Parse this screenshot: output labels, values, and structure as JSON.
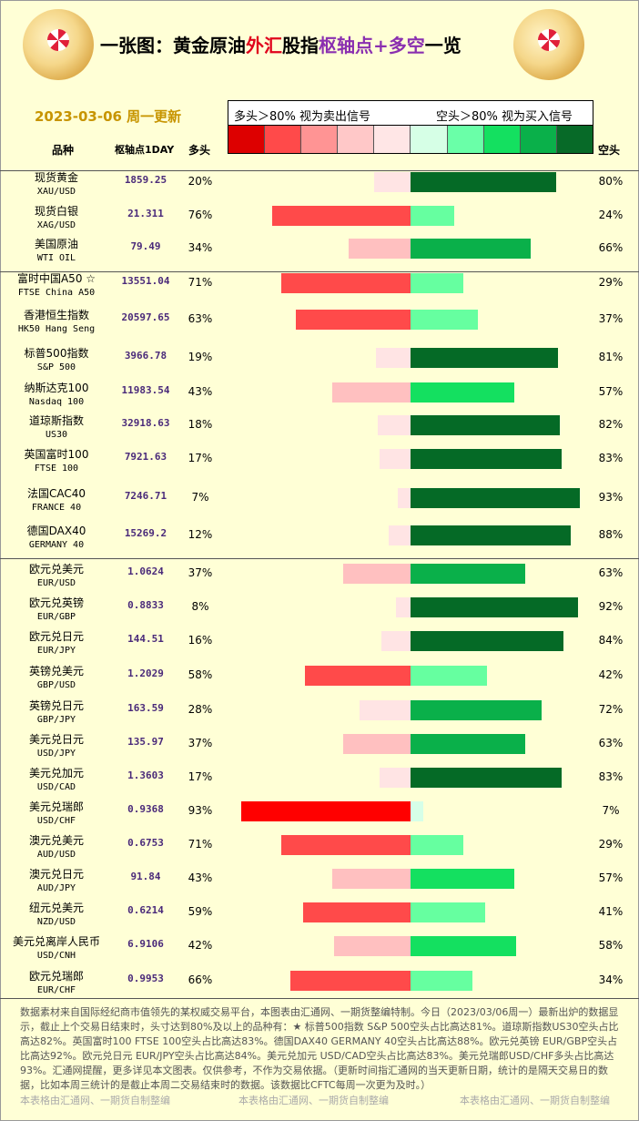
{
  "title": {
    "part1": "一张图：黄金原油",
    "part2": "外汇",
    "part3": "股指",
    "part4": "枢轴点+多空",
    "part5": "一览"
  },
  "date_label": "2023-03-06 周一更新",
  "legend": {
    "left": "多头＞80% 视为卖出信号",
    "right": "空头＞80% 视为买入信号"
  },
  "swatch_colors": [
    "#dd0000",
    "#ff4a4a",
    "#ff9494",
    "#ffc8c8",
    "#ffe6e6",
    "#d6ffe6",
    "#6affa8",
    "#14e060",
    "#0ab04a",
    "#076a28"
  ],
  "headers": {
    "name": "品种",
    "pivot": "枢轴点1DAY",
    "long": "多头",
    "short": "空头"
  },
  "colors": {
    "long_strong": "#ff0000",
    "long_mid": "#ff4a4a",
    "long_light": "#ffc0c0",
    "long_pale": "#ffe4e4",
    "short_pale": "#d6ffe8",
    "short_light": "#66ffa0",
    "short_mid": "#14e060",
    "short_strong": "#0ab04a",
    "short_dark": "#056a26"
  },
  "chart_data": {
    "type": "bar",
    "title": "一张图：黄金原油外汇股指枢轴点+多空一览",
    "categories": [
      "现货黄金",
      "现货白银",
      "美国原油",
      "富时中国A50 ☆",
      "香港恒生指数",
      "标普500指数",
      "纳斯达克100",
      "道琼斯指数",
      "英国富时100",
      "法国CAC40",
      "德国DAX40",
      "欧元兑美元",
      "欧元兑英镑",
      "欧元兑日元",
      "英镑兑美元",
      "英镑兑日元",
      "美元兑日元",
      "美元兑加元",
      "美元兑瑞郎",
      "澳元兑美元",
      "澳元兑日元",
      "纽元兑美元",
      "美元兑离岸人民币",
      "欧元兑瑞郎"
    ],
    "series": [
      {
        "name": "多头",
        "values": [
          20,
          76,
          34,
          71,
          63,
          19,
          43,
          18,
          17,
          7,
          12,
          37,
          8,
          16,
          58,
          28,
          37,
          17,
          93,
          71,
          43,
          59,
          42,
          66
        ]
      },
      {
        "name": "空头",
        "values": [
          80,
          24,
          66,
          29,
          37,
          81,
          57,
          82,
          83,
          93,
          88,
          63,
          92,
          84,
          42,
          72,
          63,
          83,
          7,
          29,
          57,
          41,
          58,
          34
        ]
      }
    ],
    "ylim": [
      0,
      100
    ]
  },
  "rows": [
    {
      "name": "现货黄金",
      "sub": "XAU/USD",
      "pivot": "1859.25",
      "long": "20%",
      "short": "80%"
    },
    {
      "name": "现货白银",
      "sub": "XAG/USD",
      "pivot": "21.311",
      "long": "76%",
      "short": "24%"
    },
    {
      "name": "美国原油",
      "sub": "WTI OIL",
      "pivot": "79.49",
      "long": "34%",
      "short": "66%"
    },
    {
      "name": "富时中国A50 ☆",
      "sub": "FTSE China A50",
      "pivot": "13551.04",
      "long": "71%",
      "short": "29%"
    },
    {
      "name": "香港恒生指数",
      "sub": "HK50 Hang Seng",
      "pivot": "20597.65",
      "long": "63%",
      "short": "37%"
    },
    {
      "name": "标普500指数",
      "sub": "S&P 500",
      "pivot": "3966.78",
      "long": "19%",
      "short": "81%"
    },
    {
      "name": "纳斯达克100",
      "sub": "Nasdaq 100",
      "pivot": "11983.54",
      "long": "43%",
      "short": "57%"
    },
    {
      "name": "道琼斯指数",
      "sub": "US30",
      "pivot": "32918.63",
      "long": "18%",
      "short": "82%"
    },
    {
      "name": "英国富时100",
      "sub": "FTSE 100",
      "pivot": "7921.63",
      "long": "17%",
      "short": "83%"
    },
    {
      "name": "法国CAC40",
      "sub": "FRANCE 40",
      "pivot": "7246.71",
      "long": "7%",
      "short": "93%"
    },
    {
      "name": "德国DAX40",
      "sub": "GERMANY 40",
      "pivot": "15269.2",
      "long": "12%",
      "short": "88%"
    },
    {
      "name": "欧元兑美元",
      "sub": "EUR/USD",
      "pivot": "1.0624",
      "long": "37%",
      "short": "63%"
    },
    {
      "name": "欧元兑英镑",
      "sub": "EUR/GBP",
      "pivot": "0.8833",
      "long": "8%",
      "short": "92%"
    },
    {
      "name": "欧元兑日元",
      "sub": "EUR/JPY",
      "pivot": "144.51",
      "long": "16%",
      "short": "84%"
    },
    {
      "name": "英镑兑美元",
      "sub": "GBP/USD",
      "pivot": "1.2029",
      "long": "58%",
      "short": "42%"
    },
    {
      "name": "英镑兑日元",
      "sub": "GBP/JPY",
      "pivot": "163.59",
      "long": "28%",
      "short": "72%"
    },
    {
      "name": "美元兑日元",
      "sub": "USD/JPY",
      "pivot": "135.97",
      "long": "37%",
      "short": "63%"
    },
    {
      "name": "美元兑加元",
      "sub": "USD/CAD",
      "pivot": "1.3603",
      "long": "17%",
      "short": "83%"
    },
    {
      "name": "美元兑瑞郎",
      "sub": "USD/CHF",
      "pivot": "0.9368",
      "long": "93%",
      "short": "7%"
    },
    {
      "name": "澳元兑美元",
      "sub": "AUD/USD",
      "pivot": "0.6753",
      "long": "71%",
      "short": "29%"
    },
    {
      "name": "澳元兑日元",
      "sub": "AUD/JPY",
      "pivot": "91.84",
      "long": "43%",
      "short": "57%"
    },
    {
      "name": "纽元兑美元",
      "sub": "NZD/USD",
      "pivot": "0.6214",
      "long": "59%",
      "short": "41%"
    },
    {
      "name": "美元兑离岸人民币",
      "sub": "USD/CNH",
      "pivot": "6.9106",
      "long": "42%",
      "short": "58%"
    },
    {
      "name": "欧元兑瑞郎",
      "sub": "EUR/CHF",
      "pivot": "0.9953",
      "long": "66%",
      "short": "34%"
    }
  ],
  "footer": "数据素材来自国际经纪商市值领先的某权威交易平台，本图表由汇通网、一期货整编特制。今日（2023/03/06周一）最新出炉的数据显示，截止上个交易日结束时，头寸达到80%及以上的品种有：★ 标普500指数 S&P 500空头占比高达81%。道琼斯指数US30空头占比高达82%。英国富时100 FTSE 100空头占比高达83%。德国DAX40 GERMANY 40空头占比高达88%。欧元兑英镑 EUR/GBP空头占比高达92%。欧元兑日元 EUR/JPY空头占比高达84%。美元兑加元 USD/CAD空头占比高达83%。美元兑瑞郎USD/CHF多头占比高达93%。汇通网提醒，更多详见本文图表。仅供参考，不作为交易依据。（更新时间指汇通网的当天更新日期，统计的是隔天交易日的数据，比如本周三统计的是截止本周二交易结束时的数据。该数据比CFTC每周一次更为及时。）",
  "credits": [
    "本表格由汇通网、一期货自制整编",
    "本表格由汇通网、一期货自制整编",
    "本表格由汇通网、一期货自制整编"
  ]
}
